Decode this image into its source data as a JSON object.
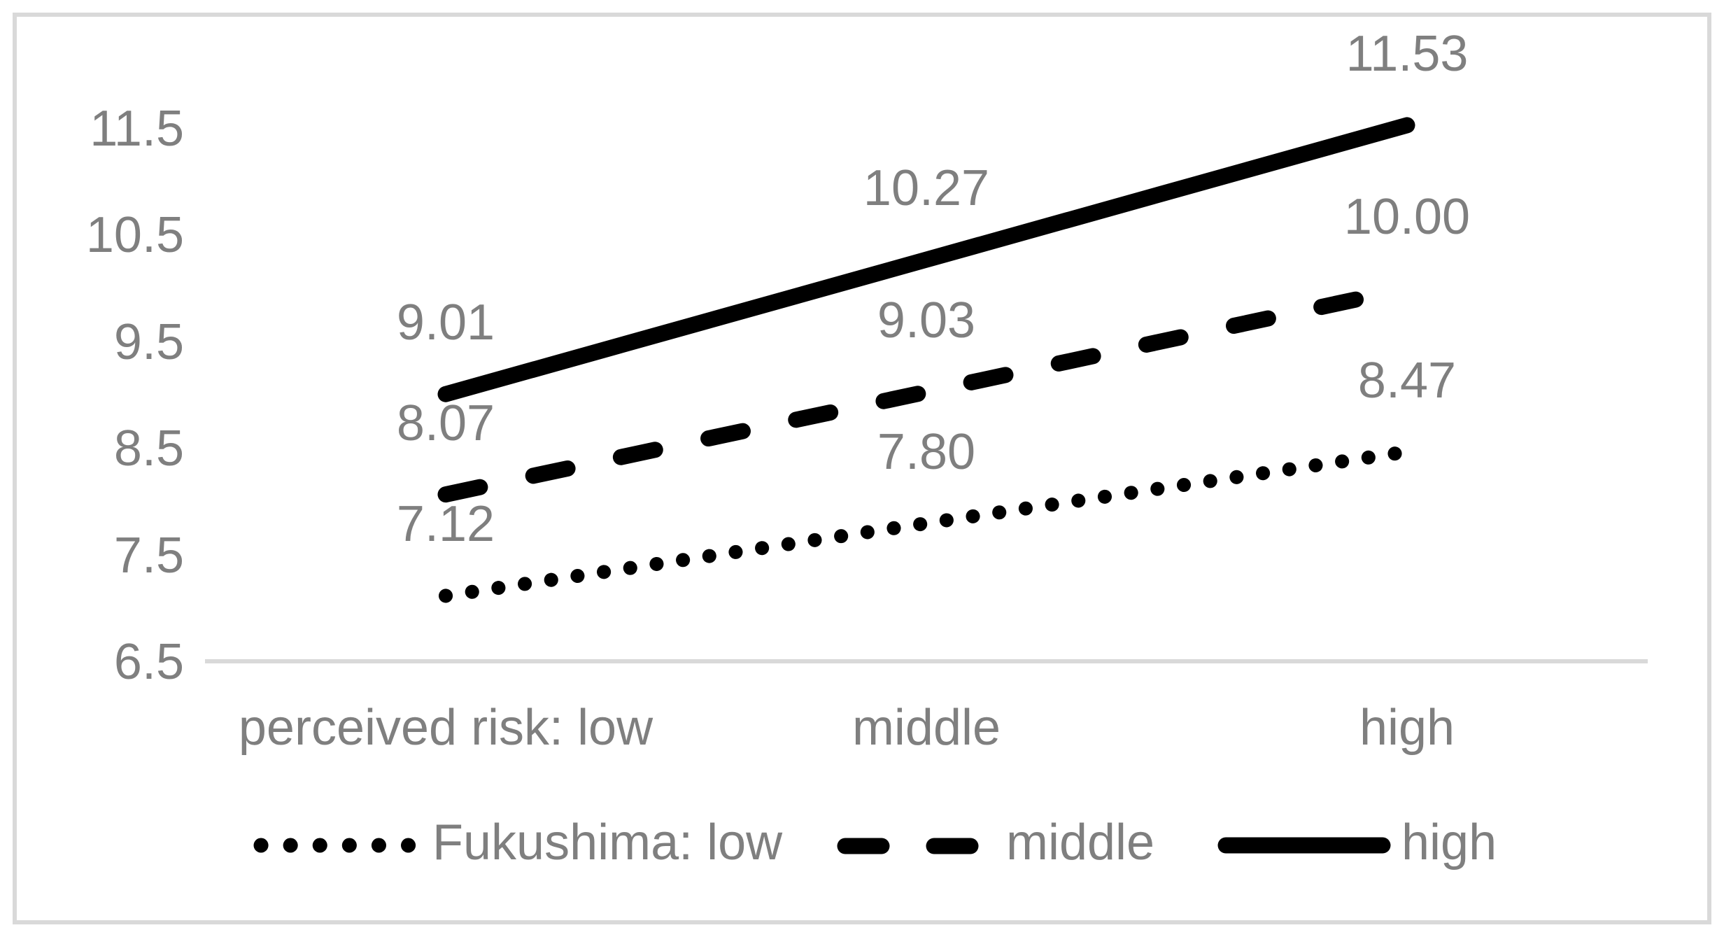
{
  "chart_data": {
    "type": "line",
    "title": "",
    "categories": [
      "perceived risk: low",
      "middle",
      "high"
    ],
    "series": [
      {
        "name": "Fukushima: low",
        "line_style": "dotted",
        "values": [
          7.12,
          7.8,
          8.47
        ],
        "point_labels": [
          "7.12",
          "7.80",
          "8.47"
        ]
      },
      {
        "name": "middle",
        "line_style": "dashed",
        "values": [
          8.07,
          9.03,
          10.0
        ],
        "point_labels": [
          "8.07",
          "9.03",
          "10.00"
        ]
      },
      {
        "name": "high",
        "line_style": "solid",
        "values": [
          9.01,
          10.27,
          11.53
        ],
        "point_labels": [
          "9.01",
          "10.27",
          "11.53"
        ]
      }
    ],
    "y_axis": {
      "tick_labels": [
        "11.5",
        "10.5",
        "9.5",
        "8.5",
        "7.5",
        "6.5"
      ],
      "min": 6.5,
      "max": 11.5,
      "tick_step": 1.0
    },
    "legend_position": "bottom",
    "grid": "off",
    "colors": {
      "line": "#000000",
      "text": "#7f7f7f",
      "axis": "#d9d9d9",
      "background": "#ffffff"
    }
  }
}
